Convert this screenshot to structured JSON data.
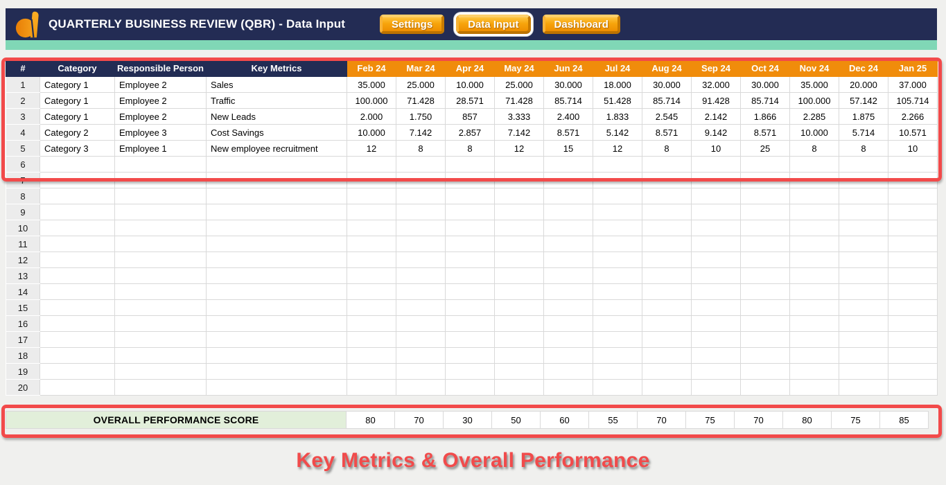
{
  "header": {
    "title": "QUARTERLY BUSINESS REVIEW (QBR) - Data Input",
    "buttons": [
      {
        "label": "Settings",
        "active": false
      },
      {
        "label": "Data Input",
        "active": true
      },
      {
        "label": "Dashboard",
        "active": false
      }
    ]
  },
  "table": {
    "fixed_headers": [
      "#",
      "Category",
      "Responsible Person",
      "Key Metrics"
    ],
    "month_headers": [
      "Feb 24",
      "Mar 24",
      "Apr 24",
      "May 24",
      "Jun 24",
      "Jul 24",
      "Aug 24",
      "Sep 24",
      "Oct 24",
      "Nov 24",
      "Dec 24",
      "Jan 25"
    ],
    "rows": [
      {
        "num": "1",
        "category": "Category 1",
        "person": "Employee 2",
        "metric": "Sales",
        "values": [
          "35.000",
          "25.000",
          "10.000",
          "25.000",
          "30.000",
          "18.000",
          "30.000",
          "32.000",
          "30.000",
          "35.000",
          "20.000",
          "37.000"
        ]
      },
      {
        "num": "2",
        "category": "Category 1",
        "person": "Employee 2",
        "metric": "Traffic",
        "values": [
          "100.000",
          "71.428",
          "28.571",
          "71.428",
          "85.714",
          "51.428",
          "85.714",
          "91.428",
          "85.714",
          "100.000",
          "57.142",
          "105.714"
        ]
      },
      {
        "num": "3",
        "category": "Category 1",
        "person": "Employee 2",
        "metric": "New Leads",
        "values": [
          "2.000",
          "1.750",
          "857",
          "3.333",
          "2.400",
          "1.833",
          "2.545",
          "2.142",
          "1.866",
          "2.285",
          "1.875",
          "2.266"
        ]
      },
      {
        "num": "4",
        "category": "Category 2",
        "person": "Employee 3",
        "metric": "Cost Savings",
        "values": [
          "10.000",
          "7.142",
          "2.857",
          "7.142",
          "8.571",
          "5.142",
          "8.571",
          "9.142",
          "8.571",
          "10.000",
          "5.714",
          "10.571"
        ]
      },
      {
        "num": "5",
        "category": "Category 3",
        "person": "Employee 1",
        "metric": "New employee recruitment",
        "values": [
          "12",
          "8",
          "8",
          "12",
          "15",
          "12",
          "8",
          "10",
          "25",
          "8",
          "8",
          "10"
        ]
      },
      {
        "num": "6"
      },
      {
        "num": "7"
      },
      {
        "num": "8"
      },
      {
        "num": "9"
      },
      {
        "num": "10"
      },
      {
        "num": "11"
      },
      {
        "num": "12"
      },
      {
        "num": "13"
      },
      {
        "num": "14"
      },
      {
        "num": "15"
      },
      {
        "num": "16"
      },
      {
        "num": "17"
      },
      {
        "num": "18"
      },
      {
        "num": "19"
      },
      {
        "num": "20"
      }
    ]
  },
  "score": {
    "label": "OVERALL PERFORMANCE SCORE",
    "values": [
      "80",
      "70",
      "30",
      "50",
      "60",
      "55",
      "70",
      "75",
      "70",
      "80",
      "75",
      "85"
    ]
  },
  "caption": "Key Metrics & Overall Performance",
  "colors": {
    "topbar_navy": "#232C54",
    "teal_strip": "#80D7B6",
    "month_header_orange": "#F08C0B",
    "button_orange": "#F49D07",
    "highlight_red": "#F24A4A",
    "score_green": "#E2EFDA",
    "caption_red": "#F14B4B",
    "page_background": "#F0F0EE"
  }
}
